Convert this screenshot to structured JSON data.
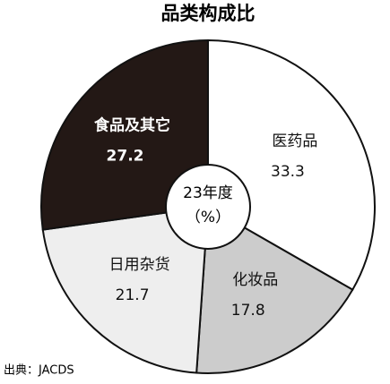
{
  "chart_data": {
    "type": "pie",
    "title": "品类构成比",
    "center_label": "23年度",
    "unit_label": "（%）",
    "categories": [
      "医药品",
      "化妆品",
      "日用杂货",
      "食品及其它"
    ],
    "values": [
      33.3,
      17.8,
      21.7,
      27.2
    ],
    "colors": [
      "#ffffff",
      "#cccccc",
      "#eeeeee",
      "#231815"
    ],
    "source": "出典：JACDS"
  }
}
